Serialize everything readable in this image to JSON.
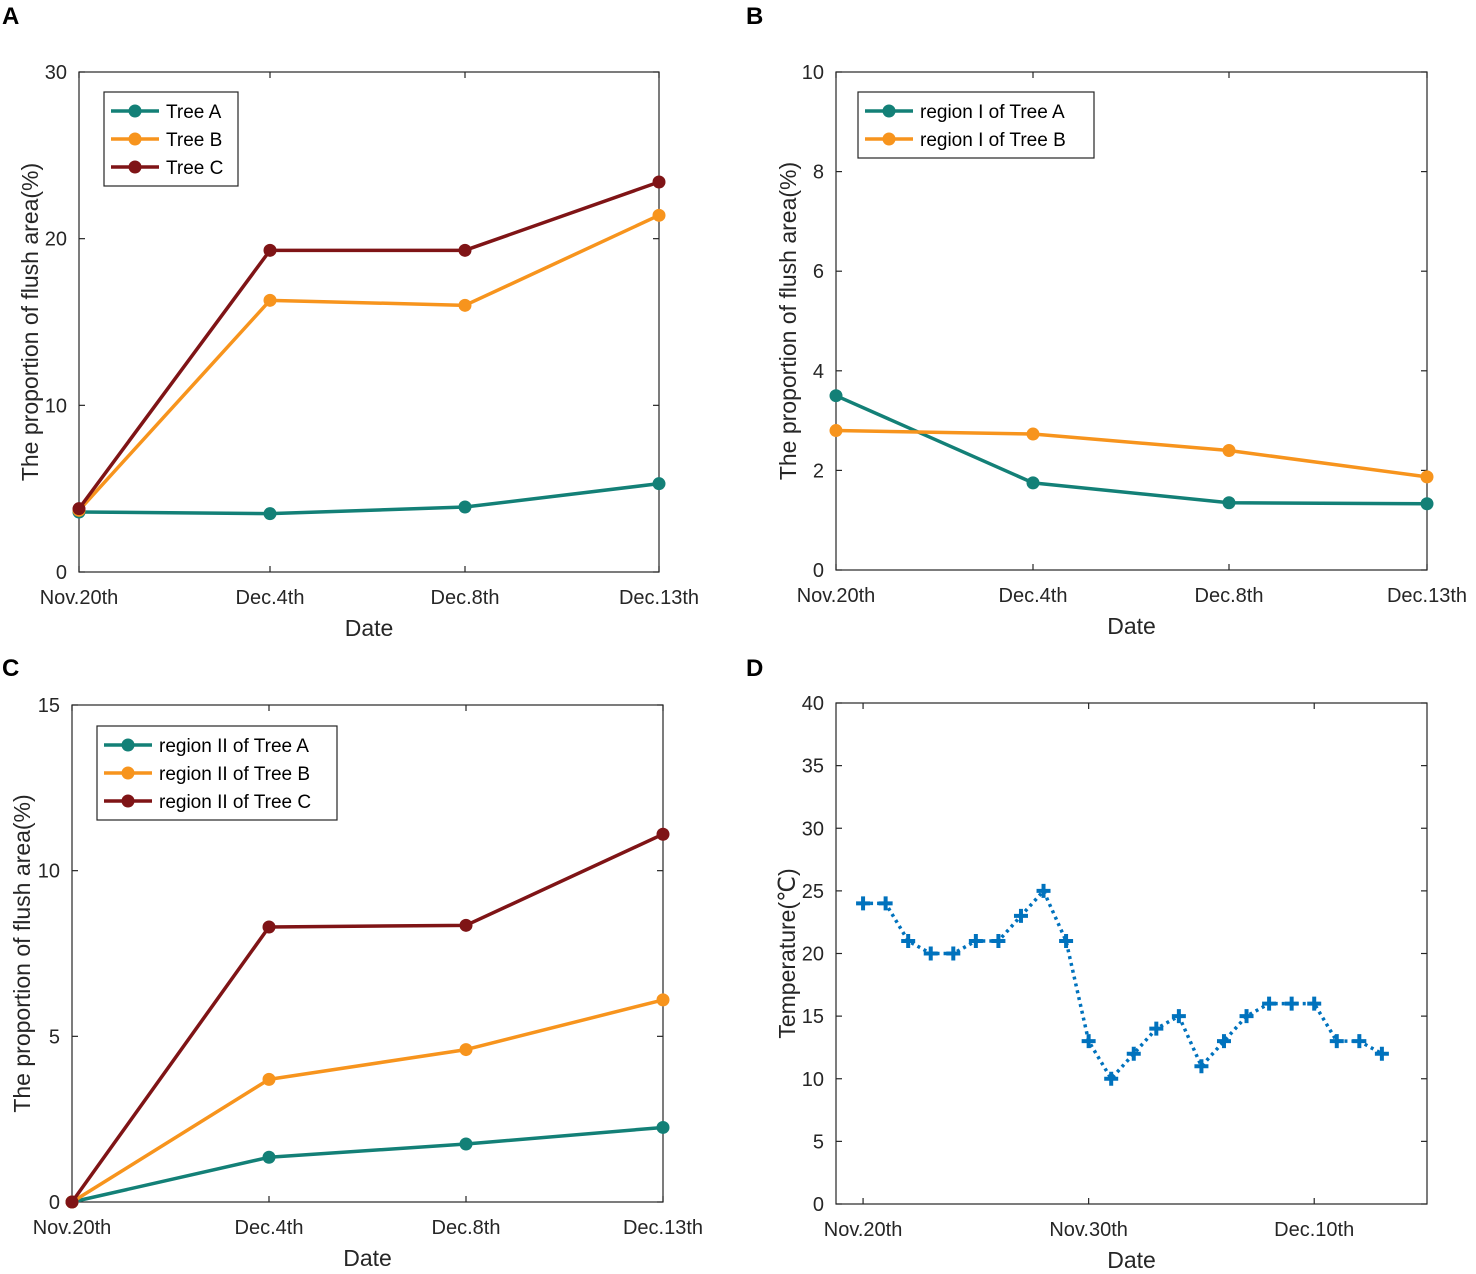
{
  "chart_data": [
    {
      "panel": "A",
      "type": "line",
      "categories": [
        "Nov.20th",
        "Dec.4th",
        "Dec.8th",
        "Dec.13th"
      ],
      "series": [
        {
          "name": "Tree A",
          "color": "#138077",
          "values": [
            3.6,
            3.5,
            3.9,
            5.3
          ]
        },
        {
          "name": "Tree B",
          "color": "#F7941D",
          "values": [
            3.7,
            16.3,
            16.0,
            21.4
          ]
        },
        {
          "name": "Tree C",
          "color": "#7F1416",
          "values": [
            3.8,
            19.3,
            19.3,
            23.4
          ]
        }
      ],
      "xlabel": "Date",
      "ylabel": "The proportion of flush area(%)",
      "ylim": [
        0,
        30
      ],
      "yticks": [
        "0",
        "10",
        "20",
        "30"
      ],
      "legend": "top-left"
    },
    {
      "panel": "B",
      "type": "line",
      "categories": [
        "Nov.20th",
        "Dec.4th",
        "Dec.8th",
        "Dec.13th"
      ],
      "series": [
        {
          "name": "region I of Tree A",
          "color": "#138077",
          "values": [
            3.5,
            1.75,
            1.35,
            1.33
          ]
        },
        {
          "name": "region I of Tree B",
          "color": "#F7941D",
          "values": [
            2.8,
            2.73,
            2.4,
            1.87
          ]
        }
      ],
      "xlabel": "Date",
      "ylabel": "The proportion of flush area(%)",
      "ylim": [
        0,
        10
      ],
      "yticks": [
        "0",
        "2",
        "4",
        "6",
        "8",
        "10"
      ],
      "legend": "top-left"
    },
    {
      "panel": "C",
      "type": "line",
      "categories": [
        "Nov.20th",
        "Dec.4th",
        "Dec.8th",
        "Dec.13th"
      ],
      "series": [
        {
          "name": "region II of Tree A",
          "color": "#138077",
          "values": [
            0.0,
            1.35,
            1.75,
            2.25
          ]
        },
        {
          "name": "region II of Tree B",
          "color": "#F7941D",
          "values": [
            0.0,
            3.7,
            4.6,
            6.1
          ]
        },
        {
          "name": "region II of Tree C",
          "color": "#7F1416",
          "values": [
            0.0,
            8.3,
            8.35,
            11.1
          ]
        }
      ],
      "xlabel": "Date",
      "ylabel": "The proportion of flush area(%)",
      "ylim": [
        0,
        15
      ],
      "yticks": [
        "0",
        "5",
        "10",
        "15"
      ],
      "legend": "top-left"
    },
    {
      "panel": "D",
      "type": "line",
      "x": [
        0,
        1,
        2,
        3,
        4,
        5,
        6,
        7,
        8,
        9,
        10,
        11,
        12,
        13,
        14,
        15,
        16,
        17,
        18,
        19,
        20,
        21,
        22,
        23
      ],
      "values": [
        24,
        24,
        21,
        20,
        20,
        21,
        21,
        23,
        25,
        21,
        13,
        10,
        12,
        14,
        15,
        11,
        13,
        15,
        16,
        16,
        16,
        13,
        13,
        12
      ],
      "series_color": "#0072BD",
      "xticks": [
        {
          "x": 0,
          "label": "Nov.20th"
        },
        {
          "x": 10,
          "label": "Nov.30th"
        },
        {
          "x": 20,
          "label": "Dec.10th"
        }
      ],
      "xlim": [
        -1.2,
        25
      ],
      "xlabel": "Date",
      "ylabel": "Temperature(℃)",
      "ylim": [
        0,
        40
      ],
      "yticks": [
        "0",
        "5",
        "10",
        "15",
        "20",
        "25",
        "30",
        "35",
        "40"
      ]
    }
  ]
}
